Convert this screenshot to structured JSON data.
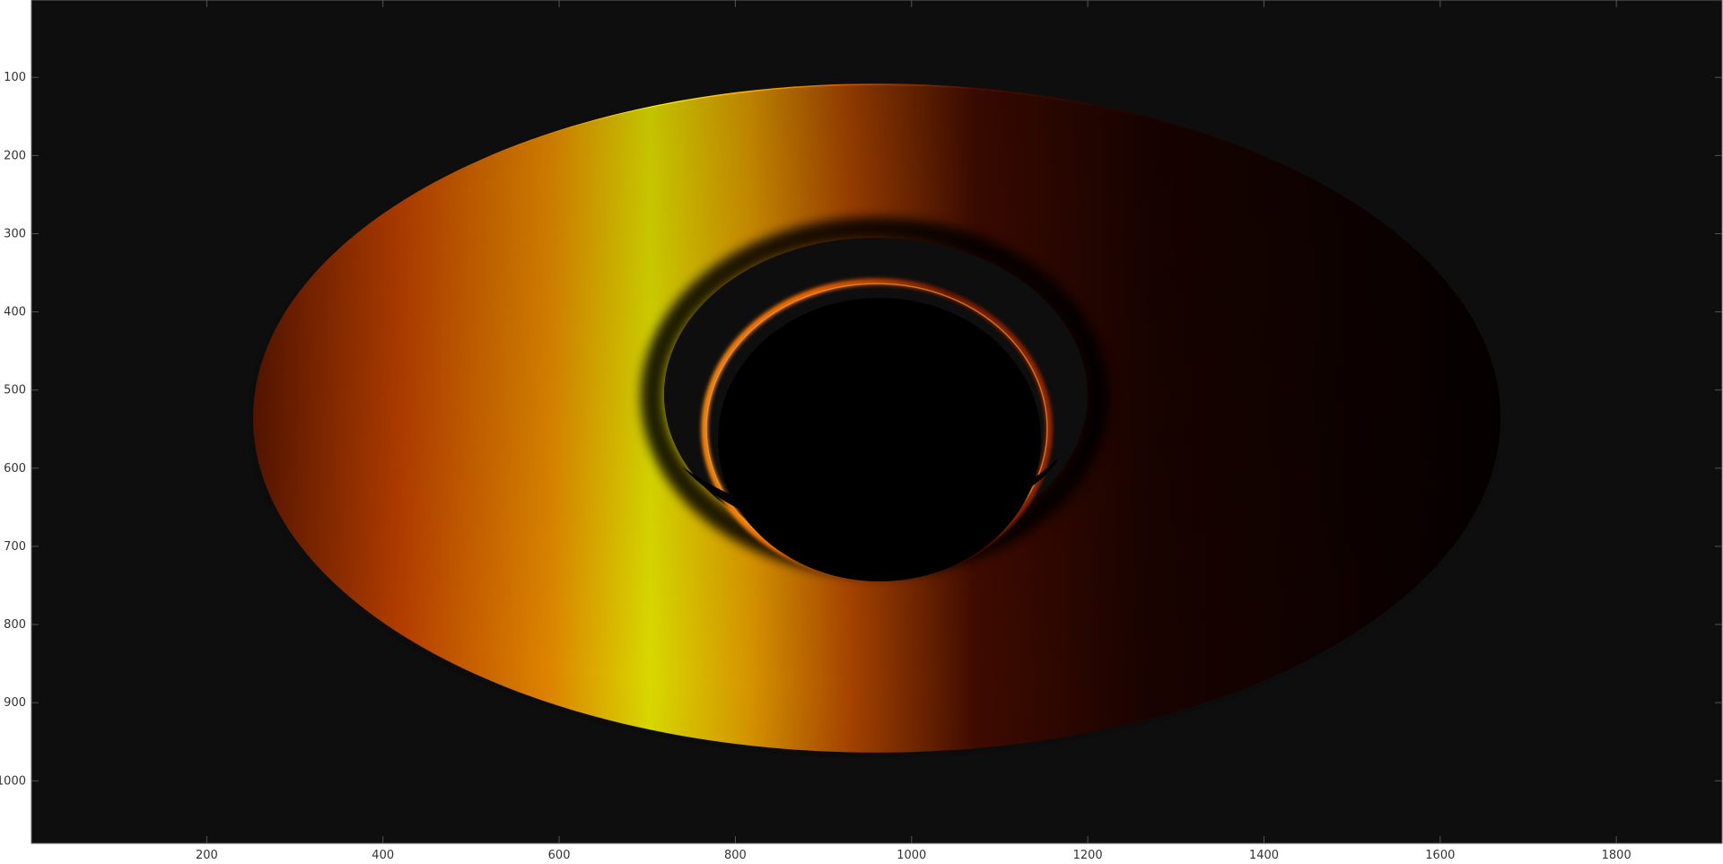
{
  "image": {
    "subject": "black hole accretion disk render",
    "colormap": "hot",
    "background_color": "#0e0e0e",
    "shadow_color": "#000000",
    "disk_colors": {
      "bright": "#ffff00",
      "mid": "#ff8c00",
      "dark": "#7a1e00",
      "faint": "#2b0500"
    }
  },
  "axes": {
    "x_ticks": [
      "200",
      "400",
      "600",
      "800",
      "1000",
      "1200",
      "1400",
      "1600",
      "1800"
    ],
    "y_ticks": [
      "100",
      "200",
      "300",
      "400",
      "500",
      "600",
      "700",
      "800",
      "900",
      "1000"
    ],
    "x_range": [
      1,
      1920
    ],
    "y_range": [
      1,
      1080
    ],
    "y_reversed": true
  }
}
